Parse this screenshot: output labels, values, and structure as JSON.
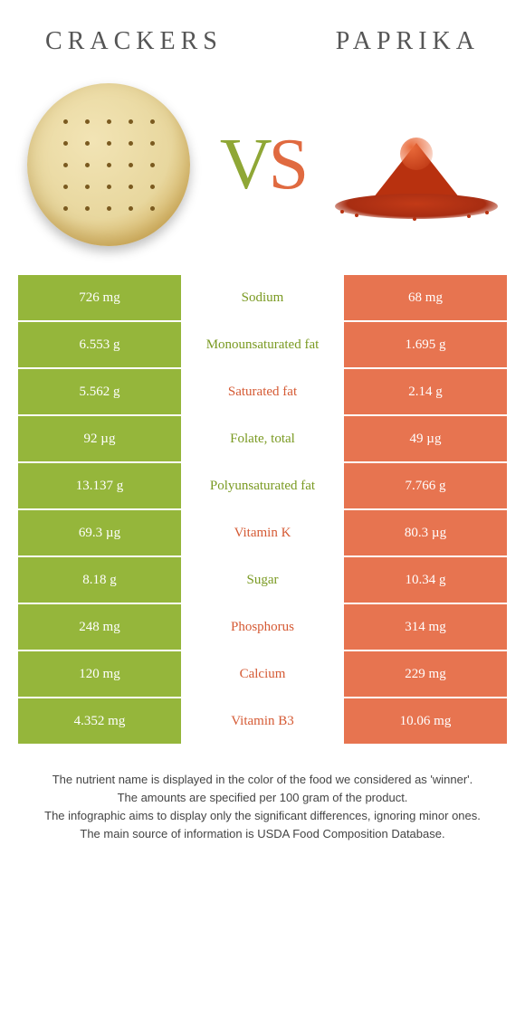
{
  "header": {
    "left": "Crackers",
    "right": "Paprika"
  },
  "vs": {
    "v": "V",
    "s": "S"
  },
  "colors": {
    "left_bg": "#95b63b",
    "right_bg": "#e77450",
    "win_left": "#7a9a22",
    "win_right": "#d55a34",
    "title_color": "#555"
  },
  "rows": [
    {
      "left": "726 mg",
      "label": "Sodium",
      "right": "68 mg",
      "winner": "left"
    },
    {
      "left": "6.553 g",
      "label": "Monounsaturated fat",
      "right": "1.695 g",
      "winner": "left"
    },
    {
      "left": "5.562 g",
      "label": "Saturated fat",
      "right": "2.14 g",
      "winner": "right"
    },
    {
      "left": "92 µg",
      "label": "Folate, total",
      "right": "49 µg",
      "winner": "left"
    },
    {
      "left": "13.137 g",
      "label": "Polyunsaturated fat",
      "right": "7.766 g",
      "winner": "left"
    },
    {
      "left": "69.3 µg",
      "label": "Vitamin K",
      "right": "80.3 µg",
      "winner": "right"
    },
    {
      "left": "8.18 g",
      "label": "Sugar",
      "right": "10.34 g",
      "winner": "left"
    },
    {
      "left": "248 mg",
      "label": "Phosphorus",
      "right": "314 mg",
      "winner": "right"
    },
    {
      "left": "120 mg",
      "label": "Calcium",
      "right": "229 mg",
      "winner": "right"
    },
    {
      "left": "4.352 mg",
      "label": "Vitamin B3",
      "right": "10.06 mg",
      "winner": "right"
    }
  ],
  "footer": {
    "l1": "The nutrient name is displayed in the color of the food we considered as 'winner'.",
    "l2": "The amounts are specified per 100 gram of the product.",
    "l3": "The infographic aims to display only the significant differences, ignoring minor ones.",
    "l4": "The main source of information is USDA Food Composition Database."
  }
}
